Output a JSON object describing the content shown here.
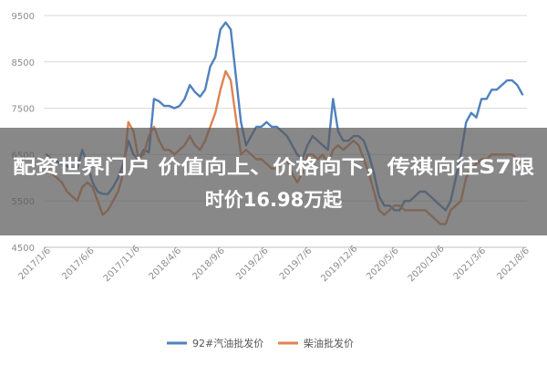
{
  "headline": {
    "line1": "配资世界门户 价值向上、价格向下，传祺向往S7限",
    "line2": "时价16.98万起"
  },
  "chart_data": {
    "type": "line",
    "ylim": [
      4500,
      9500
    ],
    "yticks": [
      9500,
      8500,
      7500,
      6500,
      5500,
      4500
    ],
    "xticks": [
      "2017/1/6",
      "2017/6/6",
      "2017/11/6",
      "2018/4/6",
      "2018/9/6",
      "2019/2/6",
      "2019/7/6",
      "2019/12/6",
      "2020/5/6",
      "2020/10/6",
      "2021/3/6",
      "2021/8/6"
    ],
    "grid": true,
    "legend_position": "bottom",
    "series": [
      {
        "name": "92#汽油批发价",
        "color": "#4f81bd",
        "values": [
          6500,
          6400,
          6350,
          6300,
          6250,
          6200,
          6200,
          6600,
          6300,
          5900,
          5700,
          5650,
          5650,
          5800,
          6000,
          6300,
          6800,
          6500,
          6400,
          6600,
          6550,
          7700,
          7650,
          7550,
          7550,
          7500,
          7550,
          7700,
          8000,
          7850,
          7750,
          7900,
          8400,
          8600,
          9200,
          9350,
          9200,
          8200,
          7200,
          6700,
          6900,
          7100,
          7100,
          7200,
          7100,
          7100,
          7000,
          6900,
          6700,
          6500,
          6400,
          6700,
          6900,
          6800,
          6700,
          6600,
          7700,
          7000,
          6800,
          6800,
          6900,
          6900,
          6800,
          6500,
          6100,
          5600,
          5400,
          5400,
          5300,
          5300,
          5500,
          5500,
          5600,
          5700,
          5700,
          5600,
          5500,
          5400,
          5300,
          5500,
          6000,
          6500,
          7200,
          7400,
          7300,
          7700,
          7700,
          7900,
          7900,
          8000,
          8100,
          8100,
          8000,
          7800
        ]
      },
      {
        "name": "柴油批发价",
        "color": "#dd8452",
        "values": [
          6200,
          6100,
          6000,
          5900,
          5700,
          5600,
          5500,
          5800,
          5900,
          5800,
          5500,
          5200,
          5300,
          5500,
          5700,
          6100,
          7200,
          7000,
          6400,
          6500,
          6900,
          7100,
          6800,
          6600,
          6600,
          6500,
          6600,
          6700,
          6900,
          6700,
          6600,
          6800,
          7100,
          7400,
          7900,
          8300,
          8100,
          7300,
          6500,
          6600,
          6500,
          6400,
          6400,
          6300,
          6200,
          6200,
          6300,
          6400,
          6100,
          5900,
          6100,
          6500,
          6500,
          6400,
          6500,
          6300,
          6600,
          6700,
          6600,
          6700,
          6800,
          6700,
          6400,
          6100,
          5700,
          5300,
          5200,
          5300,
          5400,
          5400,
          5300,
          5300,
          5300,
          5300,
          5300,
          5200,
          5100,
          5000,
          5000,
          5300,
          5400,
          5500,
          6000,
          6200,
          6300,
          6400,
          6400,
          6500,
          6500,
          6500,
          6500,
          6500,
          6400,
          6300
        ]
      }
    ]
  }
}
